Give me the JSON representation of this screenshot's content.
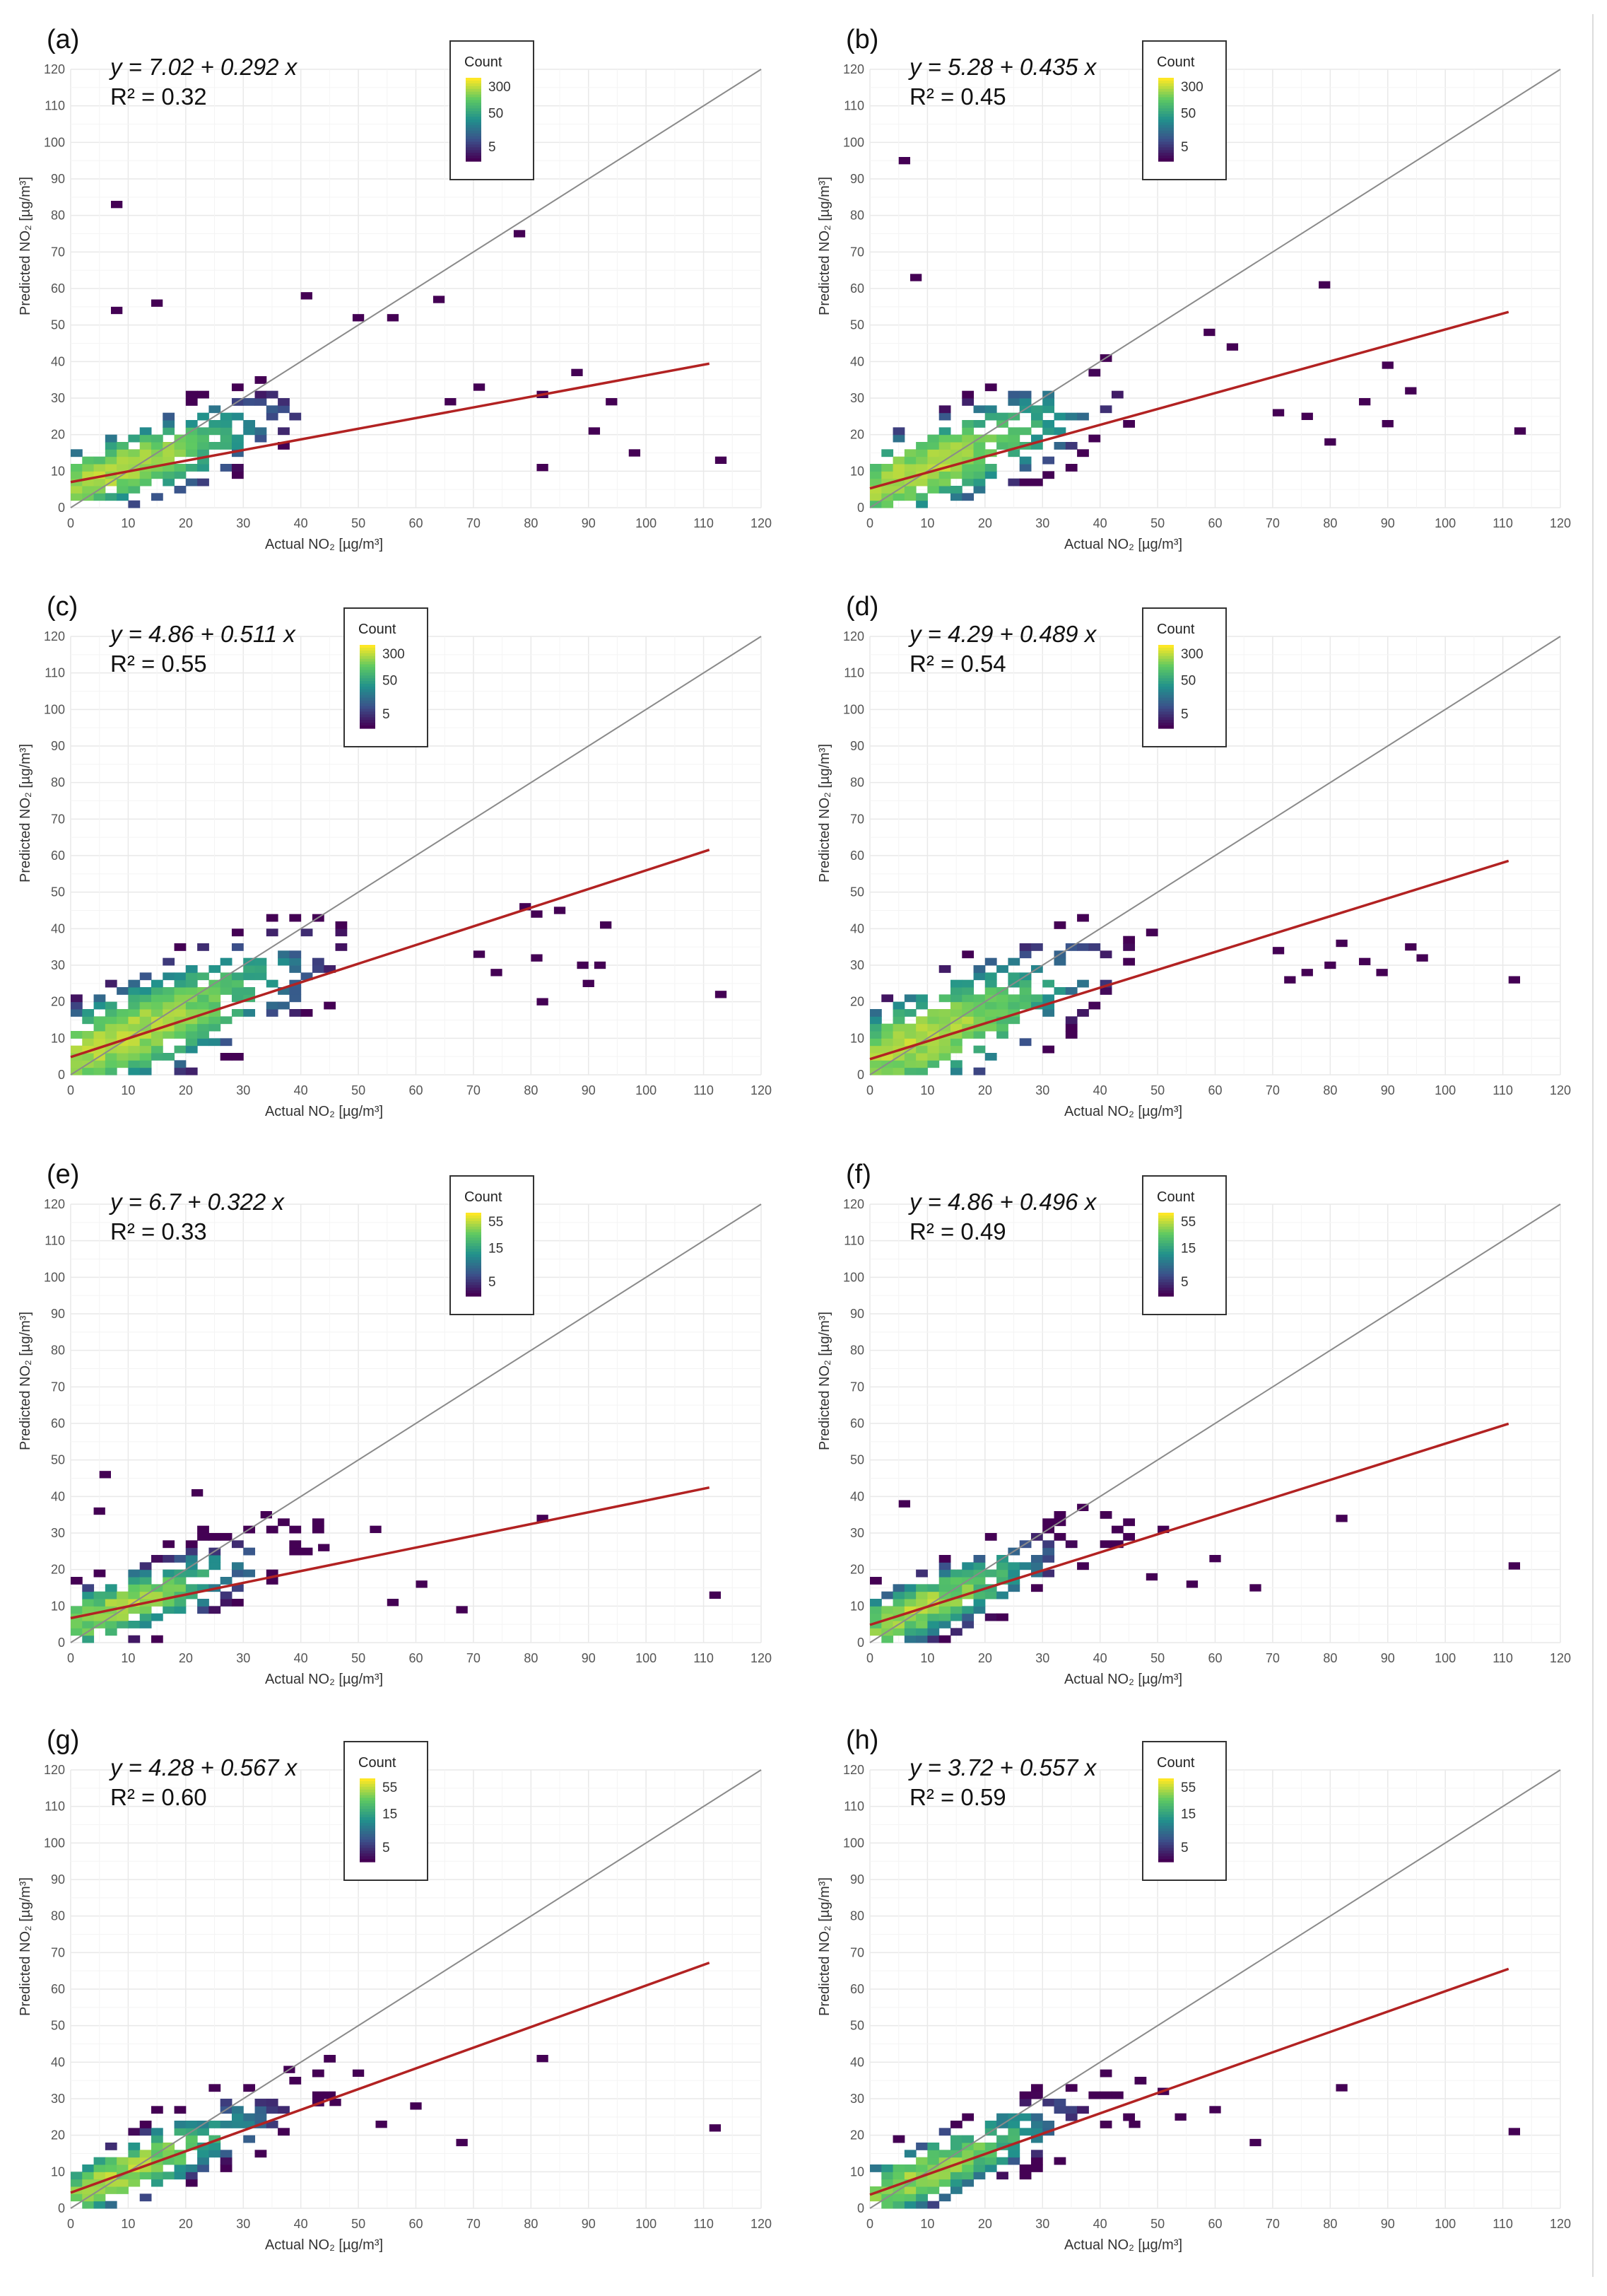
{
  "figure": {
    "common": {
      "xlabel": "Actual NO₂ [µg/m³]",
      "ylabel": "Predicted NO₂ [µg/m³]",
      "xlim": [
        0,
        120
      ],
      "ylim": [
        0,
        120
      ],
      "ticks": [
        0,
        10,
        20,
        30,
        40,
        50,
        60,
        70,
        80,
        90,
        100,
        110,
        120
      ],
      "grid": true,
      "legend_title": "Count",
      "reference_line": "1:1 identity line (grey)",
      "fit_color": "#b22222",
      "identity_color": "#8a8a8a",
      "colormap": [
        "#440154",
        "#3b528b",
        "#21918c",
        "#5ec962",
        "#fde725"
      ]
    }
  },
  "chart_data": [
    {
      "type": "heatmap",
      "panel": "(a)",
      "equation": "y = 7.02 + 0.292 x",
      "r2": "R² = 0.32",
      "intercept": 7.02,
      "slope": 0.292,
      "legend_ticks": [
        "300",
        "50",
        "5"
      ],
      "legend_range": [
        1,
        600
      ],
      "fit_x_max": 111,
      "cloud": {
        "center": [
          12,
          13
        ],
        "spread": [
          10,
          5
        ],
        "peak": 300
      },
      "outliers": [
        [
          7,
          82
        ],
        [
          7,
          53
        ],
        [
          14,
          55
        ],
        [
          40,
          57
        ],
        [
          49,
          51
        ],
        [
          55,
          51
        ],
        [
          63,
          56
        ],
        [
          77,
          74
        ],
        [
          81,
          30
        ],
        [
          87,
          36
        ],
        [
          93,
          28
        ],
        [
          90,
          20
        ],
        [
          81,
          10
        ],
        [
          97,
          14
        ],
        [
          112,
          12
        ],
        [
          65,
          28
        ],
        [
          70,
          32
        ]
      ]
    },
    {
      "type": "heatmap",
      "panel": "(b)",
      "equation": "y = 5.28 + 0.435 x",
      "r2": "R² = 0.45",
      "intercept": 5.28,
      "slope": 0.435,
      "legend_ticks": [
        "300",
        "50",
        "5"
      ],
      "legend_range": [
        1,
        600
      ],
      "fit_x_max": 111,
      "cloud": {
        "center": [
          12,
          13
        ],
        "spread": [
          11,
          6
        ],
        "peak": 300
      },
      "outliers": [
        [
          5,
          94
        ],
        [
          7,
          62
        ],
        [
          78,
          60
        ],
        [
          58,
          47
        ],
        [
          62,
          43
        ],
        [
          89,
          38
        ],
        [
          93,
          31
        ],
        [
          85,
          28
        ],
        [
          79,
          17
        ],
        [
          89,
          22
        ],
        [
          112,
          20
        ],
        [
          70,
          25
        ],
        [
          75,
          24
        ]
      ]
    },
    {
      "type": "heatmap",
      "panel": "(c)",
      "equation": "y = 4.86 + 0.511 x",
      "r2": "R² = 0.55",
      "intercept": 4.86,
      "slope": 0.511,
      "legend_ticks": [
        "300",
        "50",
        "5"
      ],
      "legend_range": [
        1,
        600
      ],
      "fit_x_max": 111,
      "cloud": {
        "center": [
          14,
          14
        ],
        "spread": [
          12,
          7
        ],
        "peak": 300
      },
      "outliers": [
        [
          78,
          45
        ],
        [
          80,
          43
        ],
        [
          84,
          44
        ],
        [
          92,
          40
        ],
        [
          80,
          31
        ],
        [
          81,
          19
        ],
        [
          88,
          29
        ],
        [
          89,
          24
        ],
        [
          91,
          29
        ],
        [
          112,
          21
        ],
        [
          70,
          32
        ],
        [
          73,
          27
        ]
      ]
    },
    {
      "type": "heatmap",
      "panel": "(d)",
      "equation": "y = 4.29 + 0.489 x",
      "r2": "R² = 0.54",
      "intercept": 4.29,
      "slope": 0.489,
      "legend_ticks": [
        "300",
        "50",
        "5"
      ],
      "legend_range": [
        1,
        600
      ],
      "fit_x_max": 111,
      "cloud": {
        "center": [
          13,
          13
        ],
        "spread": [
          11,
          7
        ],
        "peak": 300
      },
      "outliers": [
        [
          81,
          35
        ],
        [
          85,
          30
        ],
        [
          88,
          27
        ],
        [
          93,
          34
        ],
        [
          95,
          31
        ],
        [
          79,
          29
        ],
        [
          75,
          27
        ],
        [
          111,
          25
        ],
        [
          70,
          33
        ],
        [
          72,
          25
        ]
      ]
    },
    {
      "type": "heatmap",
      "panel": "(e)",
      "equation": "y = 6.7 + 0.322 x",
      "r2": "R² = 0.33",
      "intercept": 6.7,
      "slope": 0.322,
      "legend_ticks": [
        "55",
        "15",
        "5"
      ],
      "legend_range": [
        1,
        100
      ],
      "fit_x_max": 111,
      "cloud": {
        "center": [
          13,
          12
        ],
        "spread": [
          10,
          5
        ],
        "peak": 55
      },
      "outliers": [
        [
          5,
          45
        ],
        [
          4,
          35
        ],
        [
          21,
          40
        ],
        [
          33,
          34
        ],
        [
          43,
          25
        ],
        [
          52,
          30
        ],
        [
          60,
          15
        ],
        [
          67,
          8
        ],
        [
          81,
          33
        ],
        [
          111,
          12
        ],
        [
          55,
          10
        ]
      ]
    },
    {
      "type": "heatmap",
      "panel": "(f)",
      "equation": "y = 4.86 + 0.496 x",
      "r2": "R² = 0.49",
      "intercept": 4.86,
      "slope": 0.496,
      "legend_ticks": [
        "55",
        "15",
        "5"
      ],
      "legend_range": [
        1,
        100
      ],
      "fit_x_max": 111,
      "cloud": {
        "center": [
          12,
          11
        ],
        "spread": [
          10,
          5
        ],
        "peak": 55
      },
      "outliers": [
        [
          5,
          37
        ],
        [
          36,
          36
        ],
        [
          50,
          30
        ],
        [
          59,
          22
        ],
        [
          66,
          14
        ],
        [
          81,
          33
        ],
        [
          111,
          20
        ],
        [
          48,
          17
        ],
        [
          55,
          15
        ]
      ]
    },
    {
      "type": "heatmap",
      "panel": "(g)",
      "equation": "y = 4.28 + 0.567 x",
      "r2": "R² = 0.60",
      "intercept": 4.28,
      "slope": 0.567,
      "legend_ticks": [
        "55",
        "15",
        "5"
      ],
      "legend_range": [
        1,
        100
      ],
      "fit_x_max": 111,
      "cloud": {
        "center": [
          12,
          11
        ],
        "spread": [
          11,
          5
        ],
        "peak": 55
      },
      "outliers": [
        [
          37,
          37
        ],
        [
          49,
          36
        ],
        [
          59,
          27
        ],
        [
          67,
          17
        ],
        [
          81,
          40
        ],
        [
          111,
          21
        ],
        [
          53,
          22
        ],
        [
          45,
          28
        ]
      ]
    },
    {
      "type": "heatmap",
      "panel": "(h)",
      "equation": "y = 3.72 + 0.557 x",
      "r2": "R² = 0.59",
      "intercept": 3.72,
      "slope": 0.557,
      "legend_ticks": [
        "55",
        "15",
        "5"
      ],
      "legend_range": [
        1,
        100
      ],
      "fit_x_max": 111,
      "cloud": {
        "center": [
          12,
          11
        ],
        "spread": [
          11,
          5
        ],
        "peak": 55
      },
      "outliers": [
        [
          50,
          31
        ],
        [
          59,
          26
        ],
        [
          66,
          17
        ],
        [
          81,
          32
        ],
        [
          111,
          20
        ],
        [
          45,
          22
        ],
        [
          53,
          24
        ]
      ]
    }
  ]
}
